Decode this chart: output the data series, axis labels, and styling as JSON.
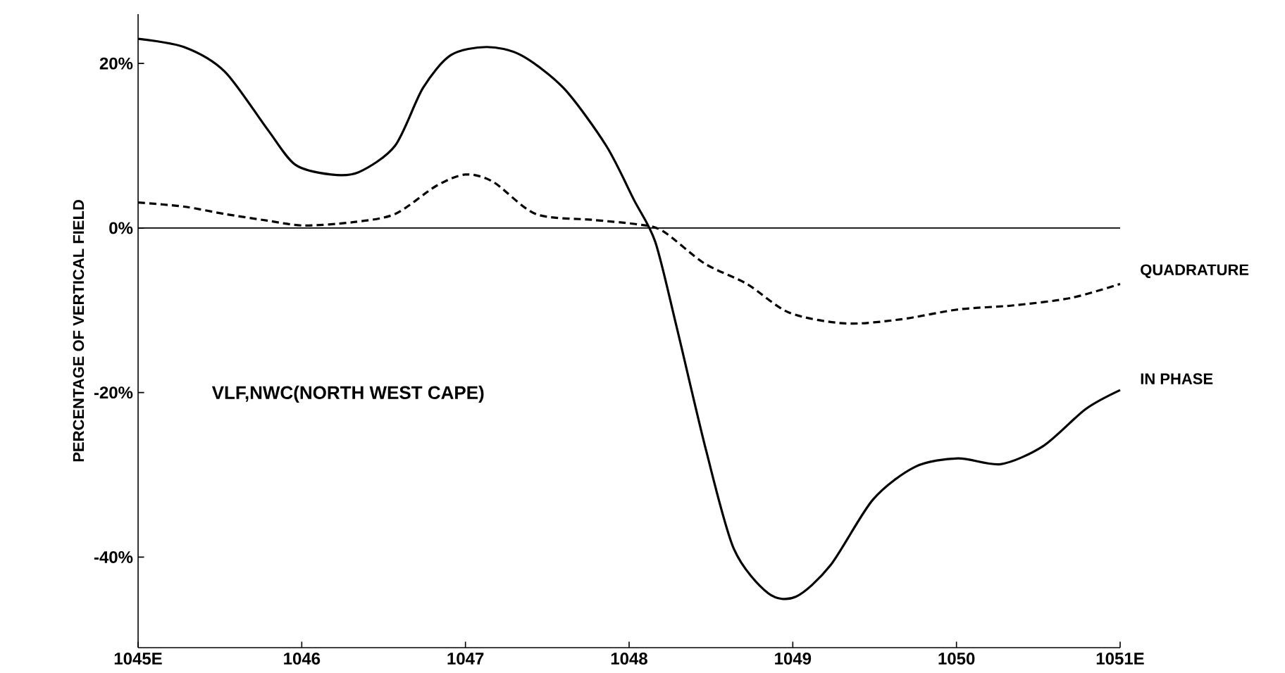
{
  "chart_data": {
    "type": "line",
    "ylabel": "PERCENTAGE OF VERTICAL FIELD",
    "annotations": [
      "VLF,NWC(NORTH WEST CAPE)"
    ],
    "xlim": [
      1045,
      1051
    ],
    "ylim": [
      -51,
      26
    ],
    "xticks": [
      {
        "value": 1045,
        "label": "1045E"
      },
      1046,
      1047,
      1048,
      1049,
      1050,
      {
        "value": 1051,
        "label": "1051E"
      }
    ],
    "yticks": [
      {
        "value": -40,
        "label": "-40%"
      },
      {
        "value": -20,
        "label": "-20%"
      },
      {
        "value": 0,
        "label": "0%"
      },
      {
        "value": 20,
        "label": "20%"
      }
    ],
    "grid": false,
    "legend": false,
    "marker": "none",
    "ref_lines": [
      {
        "axis": "y",
        "value": 0,
        "color": "#000000"
      }
    ],
    "series": [
      {
        "name": "IN PHASE",
        "color": "#000000",
        "line_style": "solid",
        "x": [
          1045.0,
          1045.28,
          1045.53,
          1045.79,
          1045.96,
          1046.18,
          1046.35,
          1046.57,
          1046.74,
          1046.91,
          1047.13,
          1047.34,
          1047.6,
          1047.86,
          1048.03,
          1048.16,
          1048.29,
          1048.47,
          1048.64,
          1048.85,
          1049.02,
          1049.23,
          1049.49,
          1049.75,
          1050.01,
          1050.27,
          1050.53,
          1050.79,
          1051.0
        ],
        "values": [
          23,
          22,
          19,
          12,
          7.7,
          6.5,
          6.8,
          10,
          17,
          21,
          22,
          21,
          17,
          10,
          3.4,
          -1.7,
          -12,
          -27,
          -39,
          -44.4,
          -44.8,
          -41,
          -33,
          -29,
          -28,
          -28.7,
          -26.5,
          -22,
          -19.7
        ]
      },
      {
        "name": "QUADRATURE",
        "color": "#000000",
        "line_style": "dashed",
        "x": [
          1045.0,
          1045.28,
          1045.53,
          1045.79,
          1046.01,
          1046.31,
          1046.57,
          1046.82,
          1047.0,
          1047.17,
          1047.43,
          1047.77,
          1048.03,
          1048.2,
          1048.46,
          1048.72,
          1048.98,
          1049.32,
          1049.66,
          1050.01,
          1050.35,
          1050.7,
          1051.0
        ],
        "values": [
          3.1,
          2.6,
          1.7,
          0.9,
          0.3,
          0.7,
          1.7,
          5.1,
          6.5,
          5.6,
          1.7,
          1.0,
          0.5,
          -0.3,
          -4.3,
          -6.8,
          -10.3,
          -11.6,
          -11.1,
          -9.9,
          -9.4,
          -8.5,
          -6.8
        ]
      }
    ]
  }
}
